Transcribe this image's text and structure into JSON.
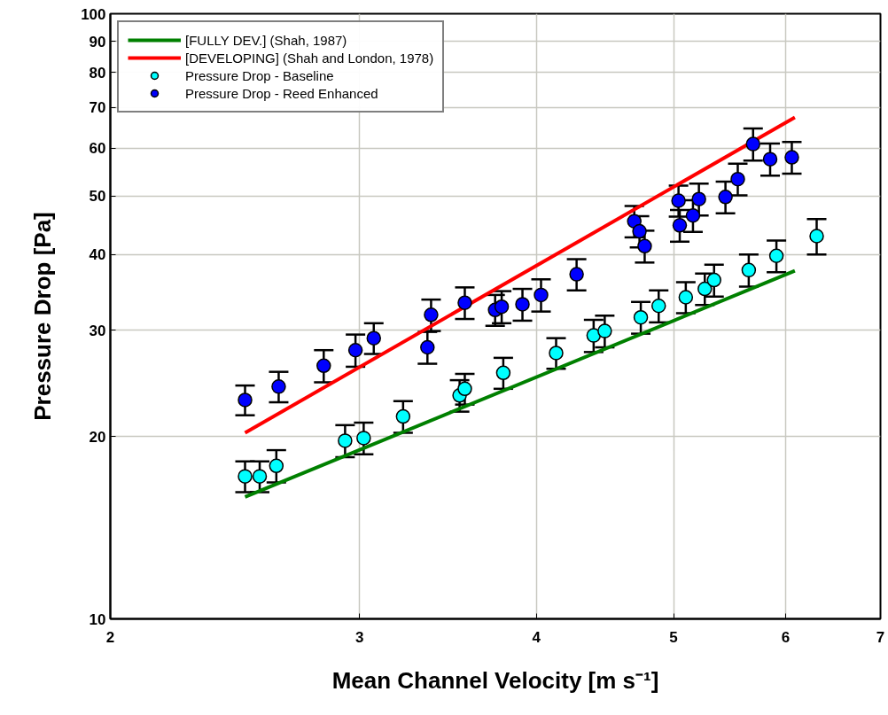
{
  "chart_data": {
    "type": "scatter",
    "xlabel": "Mean Channel Velocity [m s⁻¹]",
    "ylabel": "Pressure Drop [Pa]",
    "log": "xy",
    "xlim": [
      2,
      7
    ],
    "ylim": [
      10,
      100
    ],
    "xticks": [
      2,
      3,
      4,
      5,
      6,
      7
    ],
    "yticks": [
      10,
      20,
      30,
      40,
      50,
      60,
      70,
      80,
      90,
      100
    ],
    "grid": true,
    "legend": "top left",
    "series": [
      {
        "name": "[FULLY DEV.] (Shah, 1987)",
        "type": "line",
        "line_style": "solid",
        "color": "#008000",
        "x": [
          2.49,
          6.09
        ],
        "values": [
          15.9,
          37.6
        ]
      },
      {
        "name": "[DEVELOPING] (Shah and London, 1978)",
        "type": "line",
        "line_style": "solid",
        "color": "#ff0000",
        "x": [
          2.49,
          6.09
        ],
        "values": [
          20.3,
          67.4
        ]
      },
      {
        "name": "Pressure Drop - Baseline",
        "marker": "circle",
        "color": "#00ffff",
        "x": [
          2.49,
          2.55,
          2.62,
          2.93,
          3.02,
          3.22,
          3.53,
          3.56,
          3.79,
          4.13,
          4.39,
          4.47,
          4.74,
          4.88,
          5.1,
          5.26,
          5.34,
          5.65,
          5.91,
          6.31
        ],
        "values": [
          17.2,
          17.2,
          17.9,
          19.7,
          19.9,
          21.6,
          23.4,
          24.0,
          25.5,
          27.5,
          29.4,
          29.9,
          31.5,
          32.9,
          34.0,
          35.1,
          36.3,
          37.7,
          39.8,
          42.9
        ],
        "errors": [
          1.0,
          1.0,
          1.1,
          1.2,
          1.2,
          1.3,
          1.4,
          1.4,
          1.5,
          1.6,
          1.8,
          1.8,
          1.9,
          2.0,
          2.0,
          2.1,
          2.2,
          2.3,
          2.4,
          2.9
        ]
      },
      {
        "name": "Pressure Drop - Reed Enhanced",
        "marker": "circle",
        "color": "#0000ff",
        "x": [
          2.49,
          2.63,
          2.83,
          2.98,
          3.07,
          3.35,
          3.37,
          3.56,
          3.74,
          3.78,
          3.91,
          4.03,
          4.27,
          4.69,
          4.73,
          4.77,
          5.05,
          5.16,
          5.04,
          5.21,
          5.44,
          5.55,
          5.69,
          5.85,
          6.06
        ],
        "values": [
          23.0,
          24.2,
          26.2,
          27.8,
          29.1,
          28.1,
          31.8,
          33.3,
          32.4,
          32.8,
          33.1,
          34.3,
          37.1,
          45.4,
          43.7,
          41.3,
          44.7,
          46.4,
          49.1,
          49.4,
          49.8,
          53.3,
          60.9,
          57.5,
          57.9
        ],
        "errors": [
          1.3,
          1.4,
          1.6,
          1.7,
          1.7,
          1.7,
          1.9,
          2.0,
          1.9,
          2.0,
          2.0,
          2.1,
          2.2,
          2.7,
          2.6,
          2.5,
          2.7,
          2.8,
          2.9,
          3.0,
          3.0,
          3.2,
          3.7,
          3.5,
          3.5
        ]
      }
    ]
  }
}
